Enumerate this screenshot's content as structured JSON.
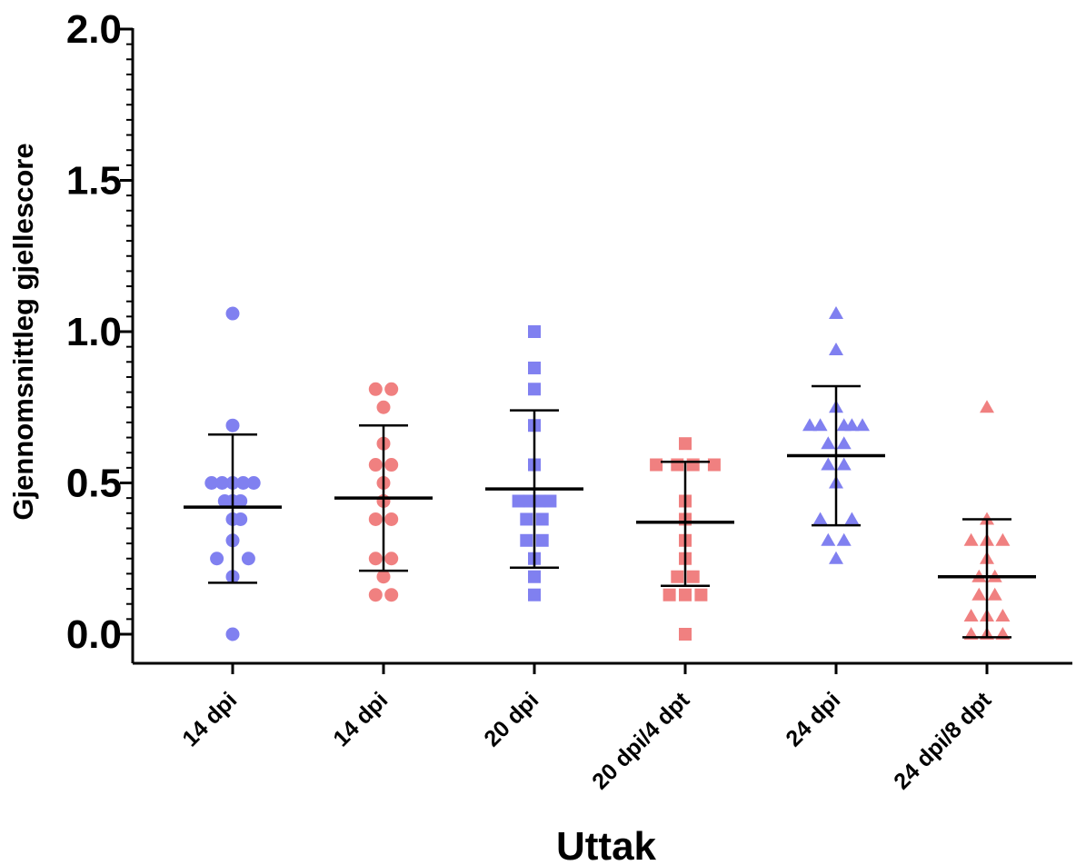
{
  "chart_data": {
    "type": "scatter",
    "title": "",
    "xlabel": "Uttak",
    "ylabel": "Gjennomsnittleg gjellescore",
    "ylim": [
      0,
      2.0
    ],
    "yticks": [
      "0.0",
      "0.5",
      "1.0",
      "1.5",
      "2.0"
    ],
    "categories": [
      "14 dpi",
      "14 dpi",
      "20 dpi",
      "20 dpi/4 dpt",
      "24 dpi",
      "24 dpi/8 dpt"
    ],
    "colors": {
      "blue": "#8080f0",
      "red": "#f08080",
      "axis": "#000000"
    },
    "groups": [
      {
        "category": "14 dpi",
        "marker": "circle",
        "color": "blue",
        "mean": 0.42,
        "sd_low": 0.17,
        "sd_high": 0.66,
        "points": [
          [
            0,
            1.06
          ],
          [
            0,
            0.69
          ],
          [
            -0.8,
            0.5
          ],
          [
            -0.4,
            0.5
          ],
          [
            0,
            0.5
          ],
          [
            0.4,
            0.5
          ],
          [
            0.8,
            0.5
          ],
          [
            -0.3,
            0.44
          ],
          [
            0,
            0.44
          ],
          [
            0.3,
            0.44
          ],
          [
            0,
            0.38
          ],
          [
            0.3,
            0.38
          ],
          [
            0,
            0.31
          ],
          [
            -0.6,
            0.25
          ],
          [
            0.6,
            0.25
          ],
          [
            0,
            0.19
          ],
          [
            0,
            0.0
          ]
        ]
      },
      {
        "category": "14 dpi",
        "marker": "circle",
        "color": "red",
        "mean": 0.45,
        "sd_low": 0.21,
        "sd_high": 0.69,
        "points": [
          [
            -0.3,
            0.81
          ],
          [
            0.3,
            0.81
          ],
          [
            0,
            0.75
          ],
          [
            0,
            0.63
          ],
          [
            -0.3,
            0.56
          ],
          [
            0.3,
            0.56
          ],
          [
            0,
            0.5
          ],
          [
            0,
            0.44
          ],
          [
            -0.3,
            0.38
          ],
          [
            0.3,
            0.38
          ],
          [
            -0.3,
            0.25
          ],
          [
            0.3,
            0.25
          ],
          [
            0,
            0.19
          ],
          [
            -0.3,
            0.13
          ],
          [
            0.3,
            0.13
          ]
        ]
      },
      {
        "category": "20 dpi",
        "marker": "square",
        "color": "blue",
        "mean": 0.48,
        "sd_low": 0.22,
        "sd_high": 0.74,
        "points": [
          [
            0,
            1.0
          ],
          [
            0,
            0.88
          ],
          [
            0,
            0.81
          ],
          [
            0,
            0.69
          ],
          [
            0,
            0.56
          ],
          [
            -0.6,
            0.44
          ],
          [
            -0.2,
            0.44
          ],
          [
            0.2,
            0.44
          ],
          [
            0.6,
            0.44
          ],
          [
            -0.3,
            0.38
          ],
          [
            0.3,
            0.38
          ],
          [
            -0.3,
            0.31
          ],
          [
            0.3,
            0.31
          ],
          [
            0,
            0.25
          ],
          [
            0,
            0.19
          ],
          [
            0,
            0.13
          ]
        ]
      },
      {
        "category": "20 dpi/4 dpt",
        "marker": "square",
        "color": "red",
        "mean": 0.37,
        "sd_low": 0.16,
        "sd_high": 0.57,
        "points": [
          [
            0,
            0.63
          ],
          [
            -1.1,
            0.56
          ],
          [
            -0.3,
            0.56
          ],
          [
            0.3,
            0.56
          ],
          [
            1.1,
            0.56
          ],
          [
            0,
            0.44
          ],
          [
            0,
            0.38
          ],
          [
            0,
            0.31
          ],
          [
            0,
            0.25
          ],
          [
            -0.3,
            0.19
          ],
          [
            0.3,
            0.19
          ],
          [
            -0.6,
            0.13
          ],
          [
            0,
            0.13
          ],
          [
            0.6,
            0.13
          ],
          [
            0,
            0.0
          ]
        ]
      },
      {
        "category": "24 dpi",
        "marker": "triangle",
        "color": "blue",
        "mean": 0.59,
        "sd_low": 0.36,
        "sd_high": 0.82,
        "points": [
          [
            0,
            1.06
          ],
          [
            0,
            0.94
          ],
          [
            -1.0,
            0.69
          ],
          [
            -0.6,
            0.69
          ],
          [
            0.3,
            0.69
          ],
          [
            0.6,
            0.69
          ],
          [
            1.0,
            0.69
          ],
          [
            0,
            0.75
          ],
          [
            -0.3,
            0.63
          ],
          [
            0.3,
            0.63
          ],
          [
            -0.3,
            0.56
          ],
          [
            0.3,
            0.56
          ],
          [
            0,
            0.5
          ],
          [
            -0.6,
            0.38
          ],
          [
            0.6,
            0.38
          ],
          [
            -0.3,
            0.31
          ],
          [
            0.3,
            0.31
          ],
          [
            0,
            0.25
          ]
        ]
      },
      {
        "category": "24 dpi/8 dpt",
        "marker": "triangle",
        "color": "red",
        "mean": 0.19,
        "sd_low": -0.01,
        "sd_high": 0.38,
        "points": [
          [
            0,
            0.75
          ],
          [
            0,
            0.38
          ],
          [
            -0.6,
            0.31
          ],
          [
            0,
            0.31
          ],
          [
            0.6,
            0.31
          ],
          [
            0,
            0.25
          ],
          [
            -0.3,
            0.19
          ],
          [
            0.3,
            0.19
          ],
          [
            -0.3,
            0.13
          ],
          [
            0.3,
            0.13
          ],
          [
            -0.6,
            0.06
          ],
          [
            0,
            0.06
          ],
          [
            0.6,
            0.06
          ],
          [
            -0.6,
            0.0
          ],
          [
            0,
            0.0
          ],
          [
            0.6,
            0.0
          ]
        ]
      }
    ]
  }
}
